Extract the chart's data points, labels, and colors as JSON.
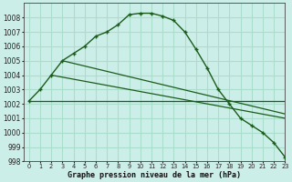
{
  "title": "Graphe pression niveau de la mer (hPa)",
  "background_color": "#cceee8",
  "grid_color": "#aaddcc",
  "line_color": "#1a5c1a",
  "xlim": [
    -0.5,
    23
  ],
  "ylim": [
    998,
    1009
  ],
  "yticks": [
    998,
    999,
    1000,
    1001,
    1002,
    1003,
    1004,
    1005,
    1006,
    1007,
    1008
  ],
  "xticks": [
    0,
    1,
    2,
    3,
    4,
    5,
    6,
    7,
    8,
    9,
    10,
    11,
    12,
    13,
    14,
    15,
    16,
    17,
    18,
    19,
    20,
    21,
    22,
    23
  ],
  "main_x": [
    0,
    1,
    2,
    3,
    4,
    5,
    6,
    7,
    8,
    9,
    10,
    11,
    12,
    13,
    14,
    15,
    16,
    17,
    18,
    19,
    20,
    21,
    22,
    23
  ],
  "main_y": [
    1002.2,
    1003.0,
    1004.0,
    1005.0,
    1005.5,
    1006.0,
    1006.7,
    1007.0,
    1007.5,
    1008.2,
    1008.3,
    1008.3,
    1008.1,
    1007.8,
    1007.0,
    1005.8,
    1004.5,
    1003.0,
    1002.0,
    1001.0,
    1000.5,
    1000.0,
    999.3,
    998.3
  ],
  "line2_x": [
    0,
    23
  ],
  "line2_y": [
    1002.2,
    1002.2
  ],
  "line3_x": [
    2,
    23
  ],
  "line3_y": [
    1004.0,
    1001.0
  ],
  "line4_x": [
    3,
    23
  ],
  "line4_y": [
    1005.0,
    1001.3
  ]
}
